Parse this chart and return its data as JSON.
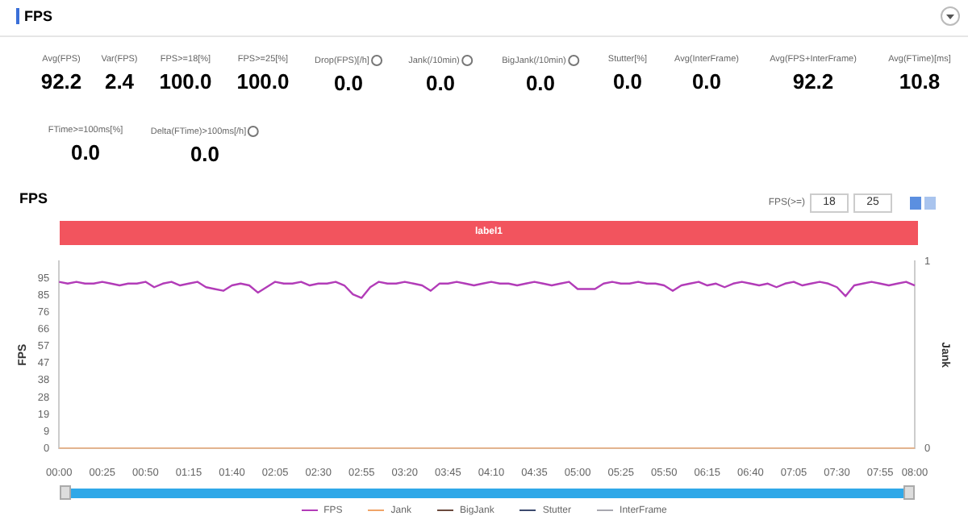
{
  "chart_data": [
    {
      "type": "other",
      "title": "FPS",
      "categories": [
        "Avg(FPS)",
        "Var(FPS)",
        "FPS>=18[%]",
        "FPS>=25[%]",
        "Drop(FPS)[/h]",
        "Jank(/10min)",
        "BigJank(/10min)",
        "Stutter[%]",
        "Avg(InterFrame)",
        "Avg(FPS+InterFrame)",
        "Avg(FTime)[ms]",
        "FTime>=100ms[%]",
        "Delta(FTime)>100ms[/h]"
      ],
      "values": [
        92.2,
        2.4,
        100,
        100,
        0,
        0,
        0,
        0,
        0,
        92.2,
        10.8,
        0,
        0
      ],
      "value_labels": [
        "92.2",
        "2.4",
        "100.0",
        "100.0",
        "0.0",
        "0.0",
        "0.0",
        "0.0",
        "0.0",
        "92.2",
        "10.8",
        "0.0",
        "0.0"
      ]
    },
    {
      "type": "line",
      "title": "FPS",
      "ylabel": "FPS",
      "y2label": "Jank",
      "legend": "bottom",
      "annotations": [
        "label1",
        "FPS(>=)",
        "18",
        "25"
      ],
      "categories": [
        "00:00",
        null,
        null,
        null,
        null,
        "00:25",
        null,
        null,
        null,
        null,
        "00:50",
        null,
        null,
        null,
        null,
        "01:15",
        null,
        null,
        null,
        null,
        "01:40",
        null,
        null,
        null,
        null,
        "02:05",
        null,
        null,
        null,
        null,
        "02:30",
        null,
        null,
        null,
        null,
        "02:55",
        null,
        null,
        null,
        null,
        "03:20",
        null,
        null,
        null,
        null,
        "03:45",
        null,
        null,
        null,
        null,
        "04:10",
        null,
        null,
        null,
        null,
        "04:35",
        null,
        null,
        null,
        null,
        "05:00",
        null,
        null,
        null,
        null,
        "05:25",
        null,
        null,
        null,
        null,
        "05:50",
        null,
        null,
        null,
        null,
        "06:15",
        null,
        null,
        null,
        null,
        "06:40",
        null,
        null,
        null,
        null,
        "07:05",
        null,
        null,
        null,
        null,
        "07:30",
        null,
        null,
        null,
        null,
        "07:55",
        null,
        null,
        null,
        "08:00"
      ],
      "ylim": [
        0,
        104.5
      ],
      "yticks": [
        0,
        {
          "value": 9.5,
          "label": "9"
        },
        19,
        {
          "value": 28.5,
          "label": "28"
        },
        38,
        {
          "value": 47.5,
          "label": "47"
        },
        57,
        {
          "value": 66.5,
          "label": "66"
        },
        76,
        {
          "value": 85.5,
          "label": "85"
        },
        95
      ],
      "y2lim": [
        0,
        1
      ],
      "y2ticks": [
        0,
        1
      ],
      "series": [
        {
          "name": "FPS",
          "color": "#b23cb8",
          "values": [
            93,
            92,
            93,
            92,
            92,
            93,
            92,
            91,
            92,
            92,
            93,
            90,
            92,
            93,
            91,
            92,
            93,
            90,
            89,
            88,
            91,
            92,
            91,
            87,
            90,
            93,
            92,
            92,
            93,
            91,
            92,
            92,
            93,
            91,
            86,
            84,
            90,
            93,
            92,
            92,
            93,
            92,
            91,
            88,
            92,
            92,
            93,
            92,
            91,
            92,
            93,
            92,
            92,
            91,
            92,
            93,
            92,
            91,
            92,
            93,
            89,
            89,
            89,
            92,
            93,
            92,
            92,
            93,
            92,
            92,
            91,
            88,
            91,
            92,
            93,
            91,
            92,
            90,
            92,
            93,
            92,
            91,
            92,
            90,
            92,
            93,
            91,
            92,
            93,
            92,
            90,
            85,
            91,
            92,
            93,
            92,
            91,
            92,
            93,
            91
          ]
        },
        {
          "name": "Jank",
          "color": "#f0a468",
          "values": [
            0,
            0,
            0,
            0,
            0,
            0,
            0,
            0,
            0,
            0,
            0,
            0,
            0,
            0,
            0,
            0,
            0,
            0,
            0,
            0,
            0,
            0,
            0,
            0,
            0,
            0,
            0,
            0,
            0,
            0,
            0,
            0,
            0,
            0,
            0,
            0,
            0,
            0,
            0,
            0,
            0,
            0,
            0,
            0,
            0,
            0,
            0,
            0,
            0,
            0,
            0,
            0,
            0,
            0,
            0,
            0,
            0,
            0,
            0,
            0,
            0,
            0,
            0,
            0,
            0,
            0,
            0,
            0,
            0,
            0,
            0,
            0,
            0,
            0,
            0,
            0,
            0,
            0,
            0,
            0,
            0,
            0,
            0,
            0,
            0,
            0,
            0,
            0,
            0,
            0,
            0,
            0,
            0,
            0,
            0,
            0,
            0,
            0,
            0,
            0
          ]
        },
        {
          "name": "BigJank",
          "color": "#6b4a3e",
          "values": [
            null,
            null,
            null,
            null,
            null,
            null,
            null,
            null,
            null,
            null,
            null,
            null,
            null,
            null,
            null,
            null,
            null,
            null,
            null,
            null,
            null,
            null,
            null,
            null,
            null,
            null,
            null,
            null,
            null,
            null,
            null,
            null,
            null,
            null,
            null,
            null,
            null,
            null,
            null,
            null,
            null,
            null,
            null,
            null,
            null,
            null,
            null,
            null,
            null,
            null,
            null,
            null,
            null,
            null,
            null,
            null,
            null,
            null,
            null,
            null,
            null,
            null,
            null,
            null,
            null,
            null,
            null,
            null,
            null,
            null,
            null,
            null,
            null,
            null,
            null,
            null,
            null,
            null,
            null,
            null,
            null,
            null,
            null,
            null,
            null,
            null,
            null,
            null,
            null,
            null,
            null,
            null,
            null,
            null,
            null,
            null,
            null,
            null,
            null,
            null
          ]
        },
        {
          "name": "Stutter",
          "color": "#3c4a6e",
          "values": [
            null,
            null,
            null,
            null,
            null,
            null,
            null,
            null,
            null,
            null,
            null,
            null,
            null,
            null,
            null,
            null,
            null,
            null,
            null,
            null,
            null,
            null,
            null,
            null,
            null,
            null,
            null,
            null,
            null,
            null,
            null,
            null,
            null,
            null,
            null,
            null,
            null,
            null,
            null,
            null,
            null,
            null,
            null,
            null,
            null,
            null,
            null,
            null,
            null,
            null,
            null,
            null,
            null,
            null,
            null,
            null,
            null,
            null,
            null,
            null,
            null,
            null,
            null,
            null,
            null,
            null,
            null,
            null,
            null,
            null,
            null,
            null,
            null,
            null,
            null,
            null,
            null,
            null,
            null,
            null,
            null,
            null,
            null,
            null,
            null,
            null,
            null,
            null,
            null,
            null,
            null,
            null,
            null,
            null,
            null,
            null,
            null,
            null,
            null,
            null
          ]
        },
        {
          "name": "InterFrame",
          "color": "#a8a8b0",
          "values": [
            null,
            null,
            null,
            null,
            null,
            null,
            null,
            null,
            null,
            null,
            null,
            null,
            null,
            null,
            null,
            null,
            null,
            null,
            null,
            null,
            null,
            null,
            null,
            null,
            null,
            null,
            null,
            null,
            null,
            null,
            null,
            null,
            null,
            null,
            null,
            null,
            null,
            null,
            null,
            null,
            null,
            null,
            null,
            null,
            null,
            null,
            null,
            null,
            null,
            null,
            null,
            null,
            null,
            null,
            null,
            null,
            null,
            null,
            null,
            null,
            null,
            null,
            null,
            null,
            null,
            null,
            null,
            null,
            null,
            null,
            null,
            null,
            null,
            null,
            null,
            null,
            null,
            null,
            null,
            null,
            null,
            null,
            null,
            null,
            null,
            null,
            null,
            null,
            null,
            null,
            null,
            null,
            null,
            null,
            null,
            null,
            null,
            null,
            null,
            null
          ]
        }
      ]
    }
  ]
}
